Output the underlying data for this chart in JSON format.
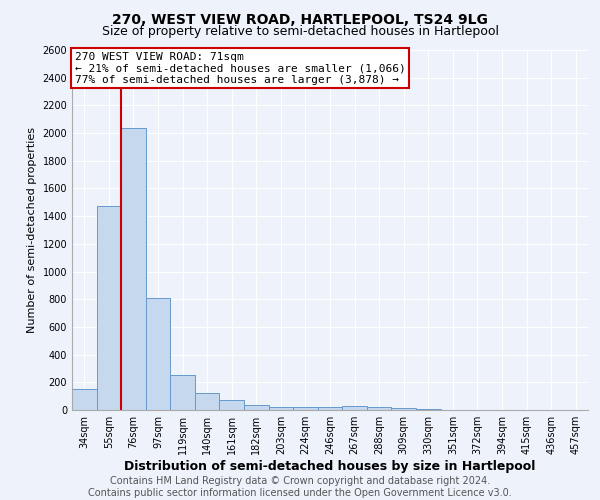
{
  "title1": "270, WEST VIEW ROAD, HARTLEPOOL, TS24 9LG",
  "title2": "Size of property relative to semi-detached houses in Hartlepool",
  "xlabel": "Distribution of semi-detached houses by size in Hartlepool",
  "ylabel": "Number of semi-detached properties",
  "footer1": "Contains HM Land Registry data © Crown copyright and database right 2024.",
  "footer2": "Contains public sector information licensed under the Open Government Licence v3.0.",
  "categories": [
    "34sqm",
    "55sqm",
    "76sqm",
    "97sqm",
    "119sqm",
    "140sqm",
    "161sqm",
    "182sqm",
    "203sqm",
    "224sqm",
    "246sqm",
    "267sqm",
    "288sqm",
    "309sqm",
    "330sqm",
    "351sqm",
    "372sqm",
    "394sqm",
    "415sqm",
    "436sqm",
    "457sqm"
  ],
  "values": [
    155,
    1470,
    2040,
    810,
    250,
    120,
    70,
    35,
    25,
    20,
    25,
    30,
    20,
    15,
    5,
    3,
    2,
    1,
    1,
    1,
    0
  ],
  "bar_color": "#c5d8ee",
  "bar_edge_color": "#6699cc",
  "property_line_x": 1.5,
  "annotation_line1": "270 WEST VIEW ROAD: 71sqm",
  "annotation_line2": "← 21% of semi-detached houses are smaller (1,066)",
  "annotation_line3": "77% of semi-detached houses are larger (3,878) →",
  "annotation_box_color": "#ffffff",
  "annotation_box_edge_color": "#cc0000",
  "vline_color": "#cc0000",
  "ylim": [
    0,
    2600
  ],
  "yticks": [
    0,
    200,
    400,
    600,
    800,
    1000,
    1200,
    1400,
    1600,
    1800,
    2000,
    2200,
    2400,
    2600
  ],
  "bg_color": "#eef2fb",
  "grid_color": "#ffffff",
  "title1_fontsize": 10,
  "title2_fontsize": 9,
  "xlabel_fontsize": 9,
  "ylabel_fontsize": 8,
  "tick_fontsize": 7,
  "annotation_fontsize": 8,
  "footer_fontsize": 7
}
